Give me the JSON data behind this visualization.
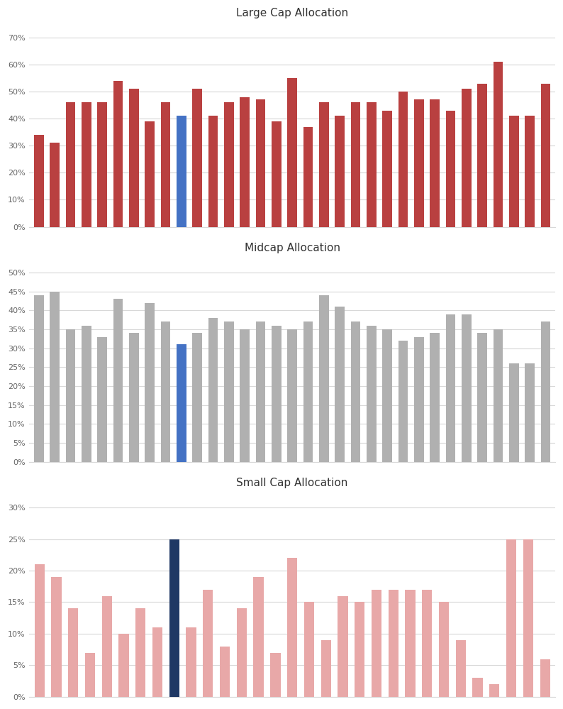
{
  "large_cap": [
    34,
    31,
    46,
    46,
    46,
    54,
    51,
    39,
    46,
    41,
    51,
    41,
    46,
    48,
    47,
    39,
    55,
    37,
    46,
    41,
    46,
    46,
    43,
    50,
    47,
    47,
    43,
    51,
    53,
    61,
    41,
    41,
    53
  ],
  "large_cap_highlight": 9,
  "midcap": [
    44,
    45,
    35,
    36,
    33,
    43,
    34,
    42,
    37,
    31,
    34,
    38,
    37,
    35,
    37,
    36,
    35,
    37,
    44,
    41,
    37,
    36,
    35,
    32,
    33,
    34,
    39,
    39,
    34,
    35,
    26,
    26,
    37
  ],
  "midcap_highlight": 9,
  "small_cap": [
    21,
    19,
    14,
    7,
    16,
    10,
    14,
    11,
    25,
    11,
    17,
    8,
    14,
    19,
    7,
    22,
    15,
    9,
    16,
    15,
    17,
    17,
    17,
    17,
    15,
    9,
    3,
    2,
    25,
    25,
    6
  ],
  "small_cap_highlight": 8,
  "large_cap_color": "#b94040",
  "large_cap_highlight_color": "#4472c4",
  "midcap_color": "#b0b0b0",
  "midcap_highlight_color": "#4472c4",
  "small_cap_color": "#e8a8a8",
  "small_cap_highlight_color": "#1f3864",
  "large_cap_title": "Large Cap Allocation",
  "midcap_title": "Midcap Allocation",
  "small_cap_title": "Small Cap Allocation",
  "large_cap_yticks": [
    0,
    10,
    20,
    30,
    40,
    50,
    60,
    70
  ],
  "midcap_yticks": [
    0,
    5,
    10,
    15,
    20,
    25,
    30,
    35,
    40,
    45,
    50
  ],
  "small_cap_yticks": [
    0,
    5,
    10,
    15,
    20,
    25,
    30
  ],
  "bg_color": "#ffffff",
  "grid_color": "#d8d8d8",
  "title_fontsize": 11,
  "tick_fontsize": 8
}
